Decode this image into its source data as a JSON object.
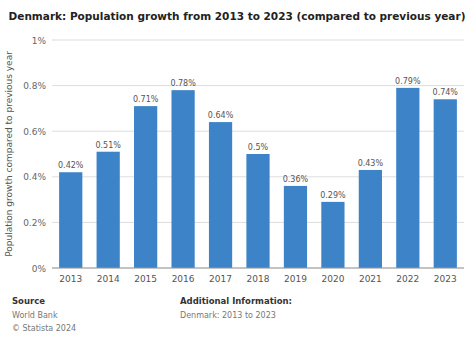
{
  "chart_data": {
    "type": "bar",
    "title": "Denmark: Population growth from 2013 to 2023 (compared to previous year)",
    "categories": [
      "2013",
      "2014",
      "2015",
      "2016",
      "2017",
      "2018",
      "2019",
      "2020",
      "2021",
      "2022",
      "2023"
    ],
    "values": [
      0.42,
      0.51,
      0.71,
      0.78,
      0.64,
      0.5,
      0.36,
      0.29,
      0.43,
      0.79,
      0.74
    ],
    "value_labels": [
      "0.42%",
      "0.51%",
      "0.71%",
      "0.78%",
      "0.64%",
      "0.5%",
      "0.36%",
      "0.29%",
      "0.43%",
      "0.79%",
      "0.74%"
    ],
    "data_labels": true,
    "color": "#3d83c8",
    "y_label": "Population growth compared to previous year",
    "ylim": [
      0,
      1.0
    ],
    "yticks": [
      {
        "value": 0,
        "label": "0%"
      },
      {
        "value": 0.2,
        "label": "0.2%"
      },
      {
        "value": 0.4,
        "label": "0.4%"
      },
      {
        "value": 0.6,
        "label": "0.6%"
      },
      {
        "value": 0.8,
        "label": "0.8%"
      },
      {
        "value": 1.0,
        "label": "1%"
      }
    ],
    "grid": true,
    "annotations": [
      "Source",
      "World Bank",
      "© Statista 2024",
      "Additional Information:",
      "Denmark: 2013 to 2023"
    ]
  }
}
